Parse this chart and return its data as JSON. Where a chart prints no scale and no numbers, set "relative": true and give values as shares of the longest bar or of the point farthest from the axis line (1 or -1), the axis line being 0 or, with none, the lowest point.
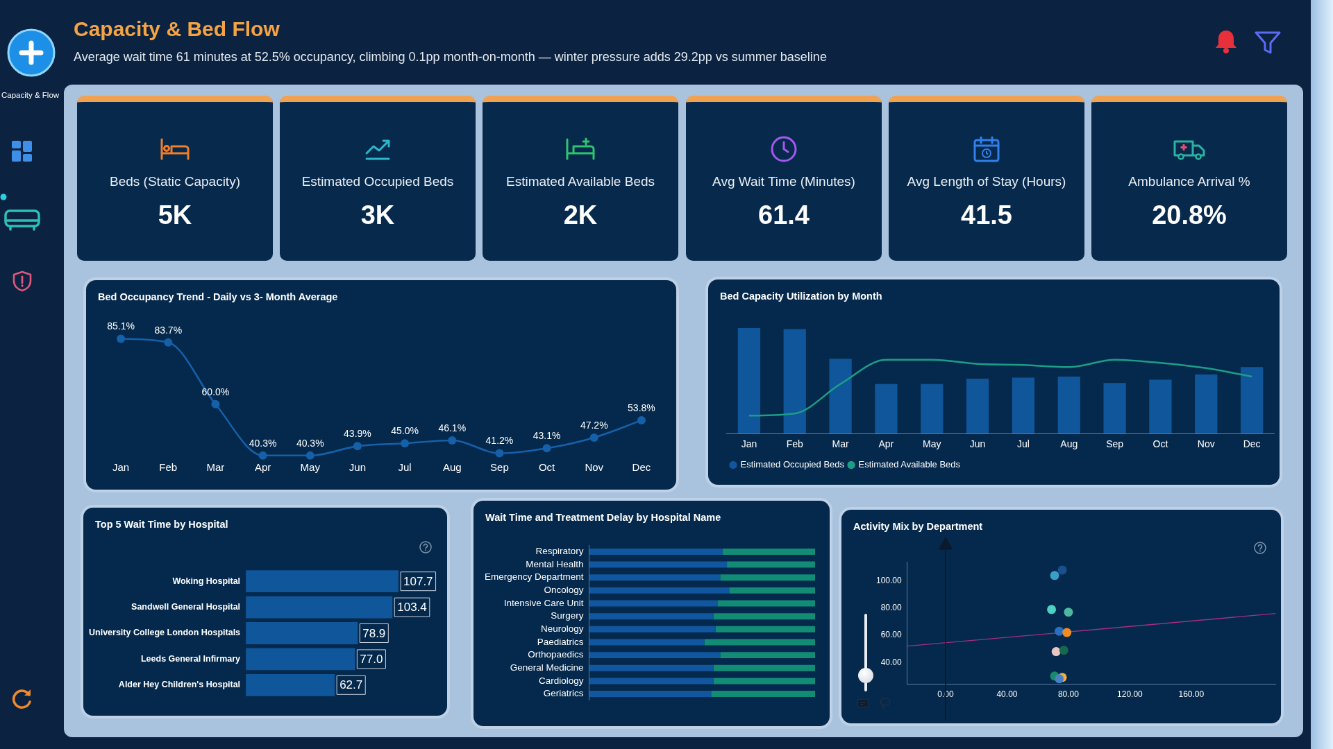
{
  "chart_data": [
    {
      "type": "other",
      "title": "Capacity & Bed Flow",
      "subtitle": "Average wait time 61 minutes at 52.5% occupancy, climbing 0.1pp month-on-month — winter pressure adds 29.2pp vs summer baseline",
      "categories": [
        "Beds (Static Capacity)",
        "Estimated Occupied Beds",
        "Estimated Available Beds",
        "Avg Wait Time (Minutes)",
        "Avg Length of Stay (Hours)",
        "Ambulance Arrival %"
      ],
      "value_labels": [
        "5K",
        "3K",
        "2K",
        "61.4",
        "41.5",
        "20.8%"
      ],
      "annotations": [
        "Capacity & Flow"
      ]
    },
    {
      "type": "line",
      "title": "Bed Occupancy Trend - Daily vs 3- Month Average",
      "categories": [
        "Jan",
        "Feb",
        "Mar",
        "Apr",
        "May",
        "Jun",
        "Jul",
        "Aug",
        "Sep",
        "Oct",
        "Nov",
        "Dec"
      ],
      "values": [
        85.1,
        83.7,
        60.0,
        40.3,
        40.3,
        43.9,
        45.0,
        46.1,
        41.2,
        43.1,
        47.2,
        53.8
      ],
      "value_labels": [
        "85.1%",
        "83.7%",
        "60.0%",
        "40.3%",
        "40.3%",
        "43.9%",
        "45.0%",
        "46.1%",
        "41.2%",
        "43.1%",
        "47.2%",
        "53.8%"
      ],
      "color": "#1660aa",
      "marker": "circle"
    },
    {
      "type": "bar",
      "title": "Bed Capacity Utilization by Month",
      "categories": [
        "Jan",
        "Feb",
        "Mar",
        "Apr",
        "May",
        "Jun",
        "Jul",
        "Aug",
        "Sep",
        "Oct",
        "Nov",
        "Dec"
      ],
      "relative": true,
      "legend": "bottom left",
      "series": [
        {
          "name": "Estimated Occupied Beds",
          "type": "bar",
          "color": "#10569a",
          "values": [
            1.0,
            0.99,
            0.71,
            0.47,
            0.47,
            0.52,
            0.53,
            0.54,
            0.48,
            0.51,
            0.56,
            0.63
          ]
        },
        {
          "name": "Estimated Available Beds",
          "type": "line",
          "color": "#1c9e86",
          "values": [
            0.17,
            0.19,
            0.47,
            0.7,
            0.7,
            0.66,
            0.65,
            0.63,
            0.7,
            0.67,
            0.62,
            0.54
          ]
        }
      ]
    },
    {
      "type": "bar",
      "orientation": "horizontal",
      "title": "Top 5 Wait Time by Hospital",
      "categories": [
        "Woking Hospital",
        "Sandwell General Hospital",
        "University College London Hospitals",
        "Leeds General Infirmary",
        "Alder Hey Children's Hospital"
      ],
      "values": [
        107.7,
        103.4,
        78.9,
        77.0,
        62.7
      ],
      "value_labels": [
        "107.7",
        "103.4",
        "78.9",
        "77.0",
        "62.7"
      ],
      "color": "#10569a"
    },
    {
      "type": "bar",
      "orientation": "horizontal",
      "stacked": true,
      "relative": true,
      "title": "Wait Time and Treatment Delay by Hospital Name",
      "categories": [
        "Respiratory",
        "Mental Health",
        "Emergency Department",
        "Oncology",
        "Intensive Care Unit",
        "Surgery",
        "Neurology",
        "Paediatrics",
        "Orthopaedics",
        "General Medicine",
        "Cardiology",
        "Geriatrics"
      ],
      "series": [
        {
          "color": "#1157a0",
          "values": [
            0.59,
            0.61,
            0.58,
            0.62,
            0.57,
            0.55,
            0.56,
            0.51,
            0.58,
            0.55,
            0.55,
            0.54
          ]
        },
        {
          "color": "#138c76",
          "values": [
            0.41,
            0.39,
            0.42,
            0.38,
            0.43,
            0.45,
            0.44,
            0.49,
            0.42,
            0.45,
            0.45,
            0.46
          ]
        }
      ]
    },
    {
      "type": "scatter",
      "title": "Activity Mix by Department",
      "xlim": [
        -25,
        215
      ],
      "ylim": [
        24,
        114
      ],
      "xticks": [
        {
          "value": 0,
          "label": "0.00"
        },
        {
          "value": 40,
          "label": "40.00"
        },
        {
          "value": 80,
          "label": "80.00"
        },
        {
          "value": 120,
          "label": "120.00"
        },
        {
          "value": 160,
          "label": "160.00"
        }
      ],
      "yticks": [
        {
          "value": 40,
          "label": "40.00"
        },
        {
          "value": 60,
          "label": "60.00"
        },
        {
          "value": 80,
          "label": "80.00"
        },
        {
          "value": 100,
          "label": "100.00"
        }
      ],
      "marker": "circle",
      "series": [
        {
          "type": "scatter",
          "x": [
            76,
            71,
            69,
            80,
            74,
            79,
            72,
            77,
            71,
            76,
            74
          ],
          "values": [
            108,
            104,
            79,
            77,
            63,
            62,
            48,
            49,
            30,
            29,
            28
          ],
          "colors": [
            "#17518f",
            "#3b9dc9",
            "#4fd0c4",
            "#4db8a0",
            "#2a6fc2",
            "#f28a26",
            "#e8c6c6",
            "#17684e",
            "#168a6e",
            "#f0b040",
            "#4a80c4"
          ]
        },
        {
          "type": "line",
          "x": [
            -25,
            215
          ],
          "values": [
            52,
            76
          ],
          "color": "#a3307f",
          "marker": "none"
        }
      ]
    }
  ]
}
